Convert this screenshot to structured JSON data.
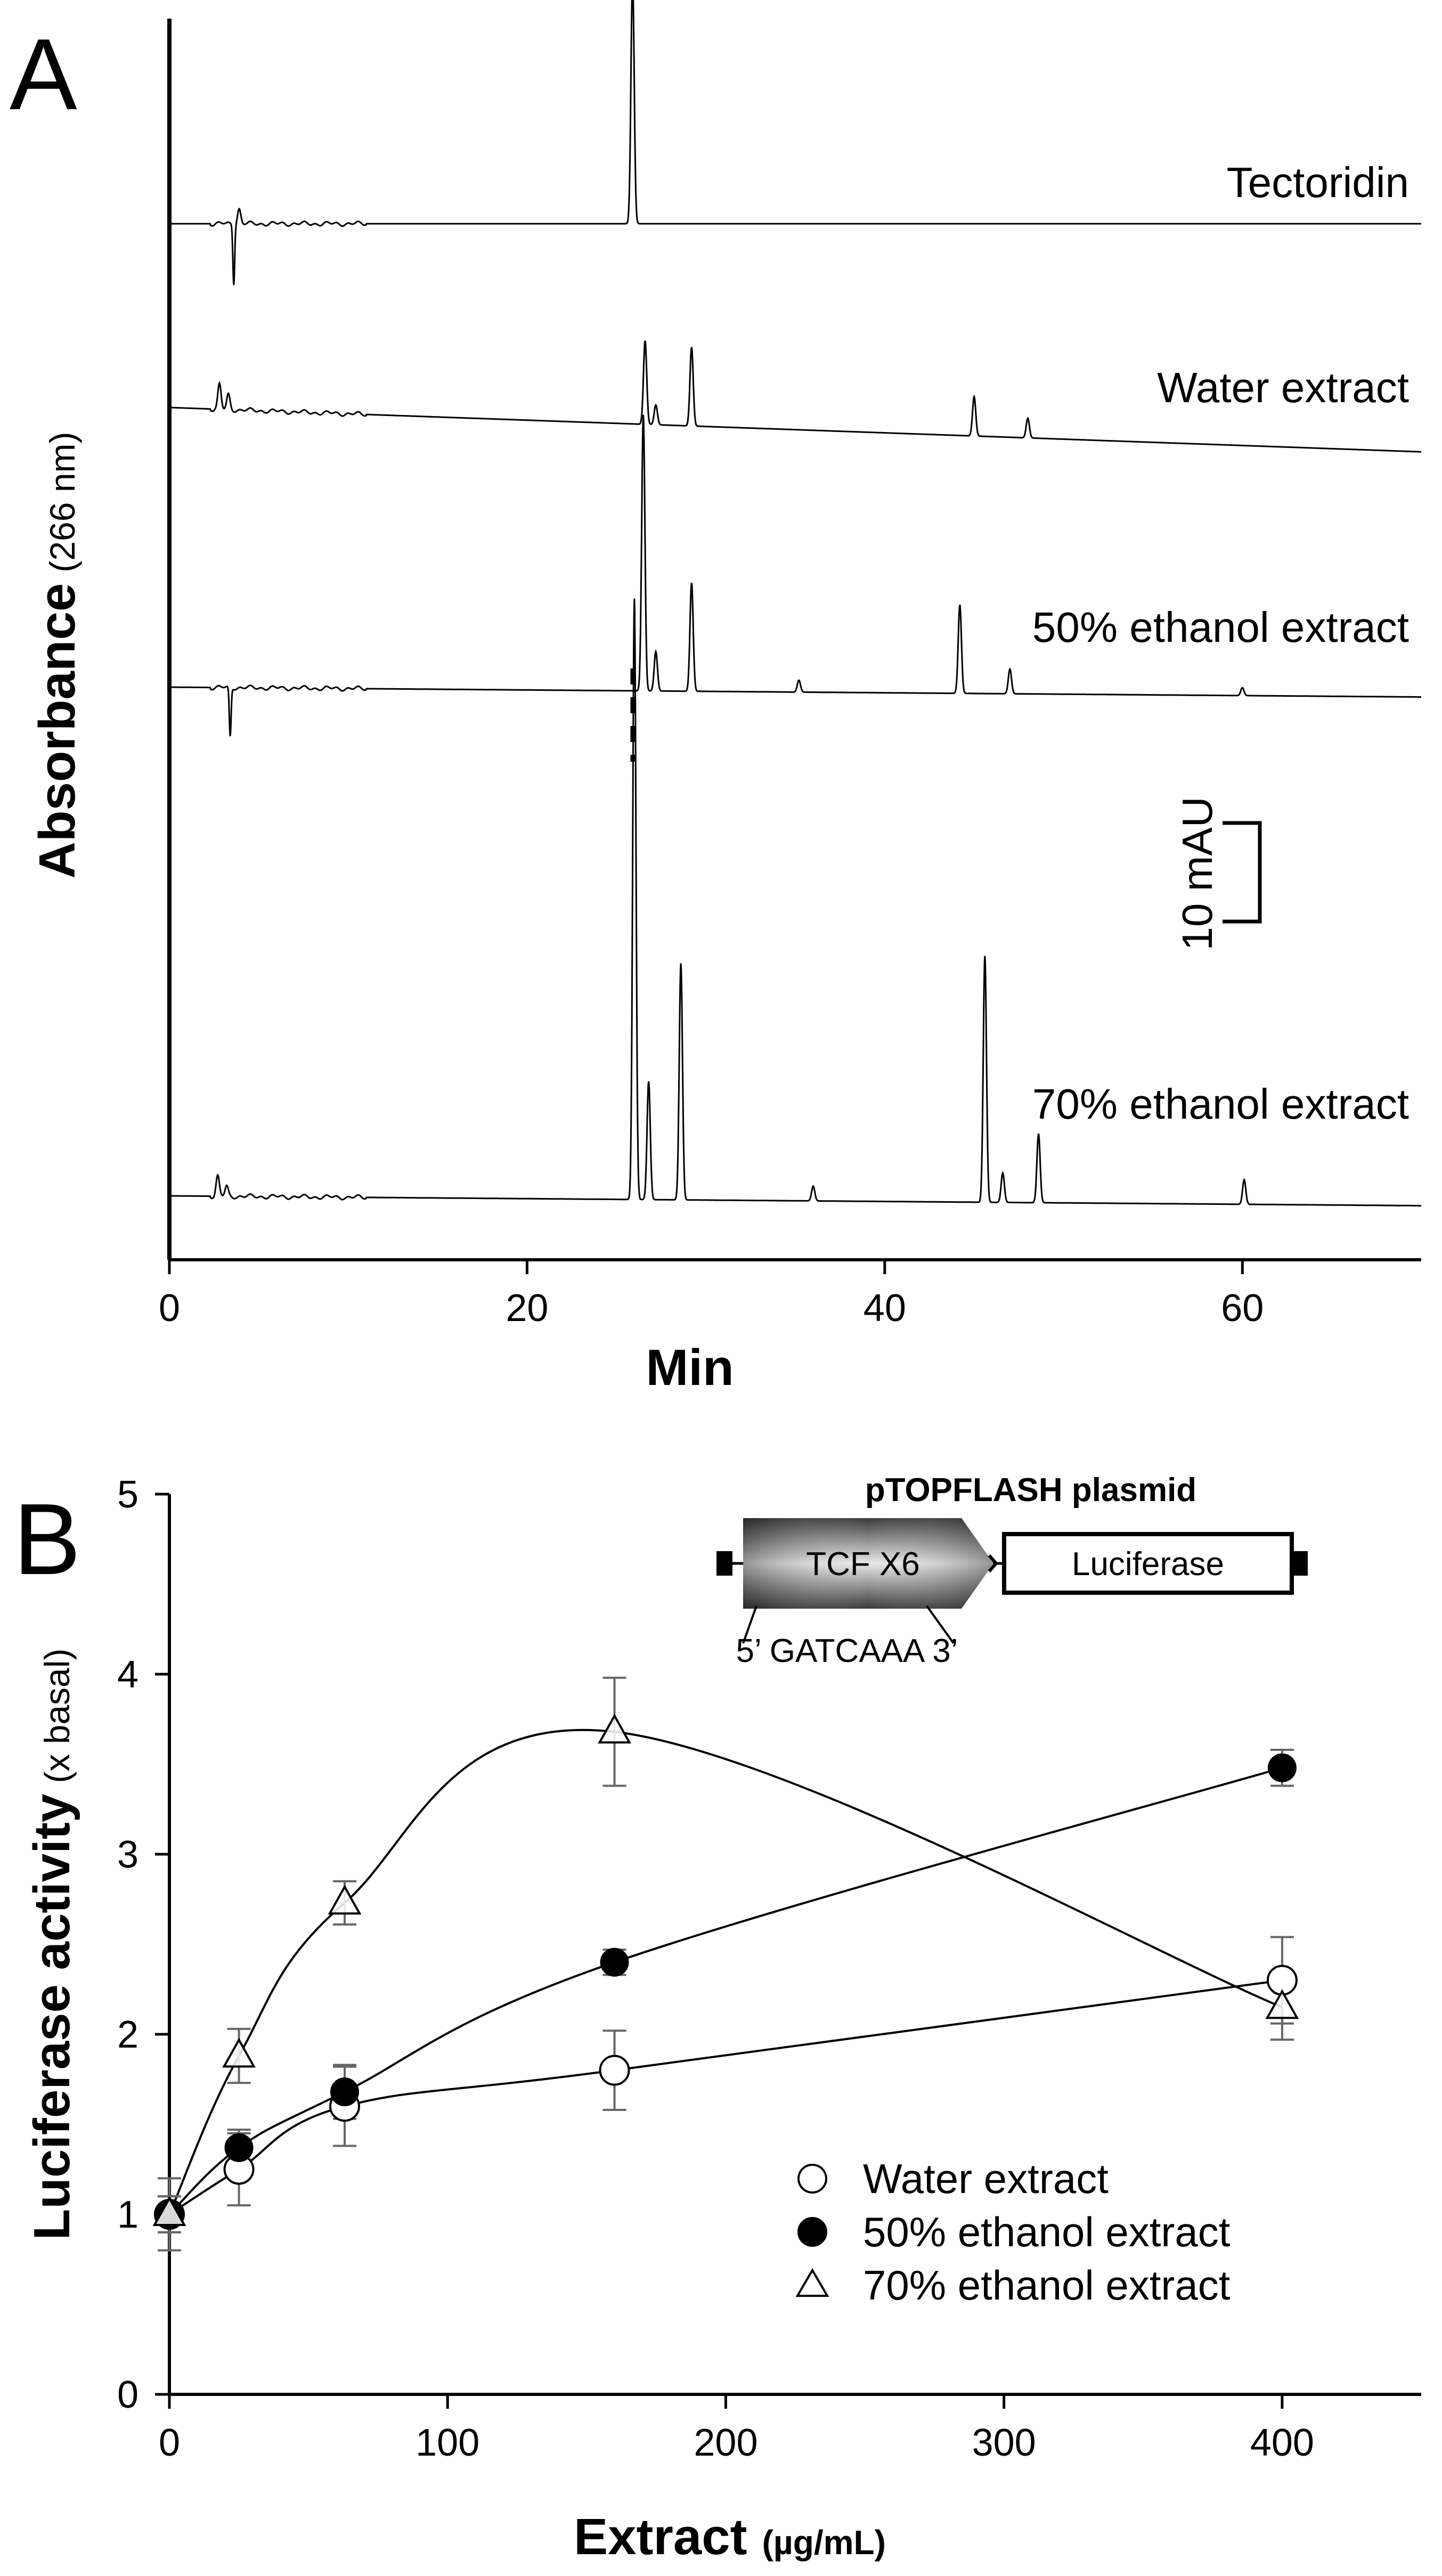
{
  "panel_a": {
    "letter": "A",
    "chart_data": {
      "type": "line",
      "title": "",
      "xlabel": "Min",
      "ylabel": "Absorbance",
      "ylabel_unit": "(266 nm)",
      "xlim": [
        0,
        70
      ],
      "xticks": [
        0,
        20,
        40,
        60
      ],
      "traces": [
        {
          "name": "Tectoridin",
          "baseline_start": 0.0,
          "baseline_end": 0.0,
          "peaks": [
            {
              "x": 25.9,
              "height": 25.0
            },
            {
              "x": 3.6,
              "height": -6.0
            },
            {
              "x": 3.9,
              "height": 1.5
            }
          ]
        },
        {
          "name": "Water extract",
          "baseline_start": 0.0,
          "baseline_end": -4.5,
          "peaks": [
            {
              "x": 2.8,
              "height": 2.5
            },
            {
              "x": 3.3,
              "height": 1.5
            },
            {
              "x": 26.6,
              "height": 8.5
            },
            {
              "x": 27.2,
              "height": 2.0
            },
            {
              "x": 29.2,
              "height": 8.0
            },
            {
              "x": 45.0,
              "height": 4.0
            },
            {
              "x": 48.0,
              "height": 2.0
            }
          ]
        },
        {
          "name": "50% ethanol extract",
          "baseline_start": 0.0,
          "baseline_end": -1.0,
          "peaks": [
            {
              "x": 3.4,
              "height": -5.0
            },
            {
              "x": 26.5,
              "height": 28.0
            },
            {
              "x": 27.2,
              "height": 4.0
            },
            {
              "x": 29.2,
              "height": 11.0
            },
            {
              "x": 35.2,
              "height": 1.2
            },
            {
              "x": 44.2,
              "height": 9.0
            },
            {
              "x": 47.0,
              "height": 2.5
            },
            {
              "x": 60.0,
              "height": 0.8
            }
          ]
        },
        {
          "name": "70% ethanol extract",
          "baseline_start": 0.0,
          "baseline_end": -1.0,
          "peaks": [
            {
              "x": 2.7,
              "height": 2.0
            },
            {
              "x": 3.2,
              "height": 1.0
            },
            {
              "x": 26.0,
              "height": 61.0
            },
            {
              "x": 26.8,
              "height": 12.0
            },
            {
              "x": 28.6,
              "height": 24.0
            },
            {
              "x": 36.0,
              "height": 1.5
            },
            {
              "x": 45.6,
              "height": 25.0
            },
            {
              "x": 46.6,
              "height": 3.0
            },
            {
              "x": 48.6,
              "height": 7.0
            },
            {
              "x": 60.1,
              "height": 2.5
            }
          ]
        }
      ],
      "scale_bar": {
        "label": "10 mAU",
        "value_mAU": 10
      }
    }
  },
  "panel_b": {
    "letter": "B",
    "chart_data": {
      "type": "scatter",
      "title": "",
      "xlabel": "Extract",
      "xlabel_unit": "(µg/mL)",
      "ylabel": "Luciferase activity",
      "ylabel_unit": "(x basal)",
      "xlim": [
        0,
        450
      ],
      "ylim": [
        0,
        5
      ],
      "xticks": [
        0,
        100,
        200,
        300,
        400
      ],
      "yticks": [
        0,
        1,
        2,
        3,
        4,
        5
      ],
      "x": [
        0,
        25,
        63,
        160,
        400
      ],
      "series": [
        {
          "name": "Water extract",
          "marker": "open-circle",
          "values": [
            1.0,
            1.25,
            1.6,
            1.8,
            2.3
          ],
          "errors": [
            0.2,
            0.2,
            0.22,
            0.22,
            0.24
          ]
        },
        {
          "name": "50% ethanol extract",
          "marker": "filled-circle",
          "values": [
            1.0,
            1.37,
            1.68,
            2.4,
            3.48
          ],
          "errors": [
            0.1,
            0.1,
            0.15,
            0.07,
            0.1
          ]
        },
        {
          "name": "70% ethanol extract",
          "marker": "open-triangle",
          "values": [
            1.0,
            1.88,
            2.73,
            3.68,
            2.15
          ],
          "errors": [
            0.1,
            0.15,
            0.12,
            0.3,
            0.18
          ]
        }
      ],
      "legend_position": "bottom-right"
    },
    "inset": {
      "title": "pTOPFLASH plasmid",
      "element_label": "TCF X6",
      "sequence": "5’ GATCAAA 3’",
      "reporter_label": "Luciferase"
    }
  }
}
